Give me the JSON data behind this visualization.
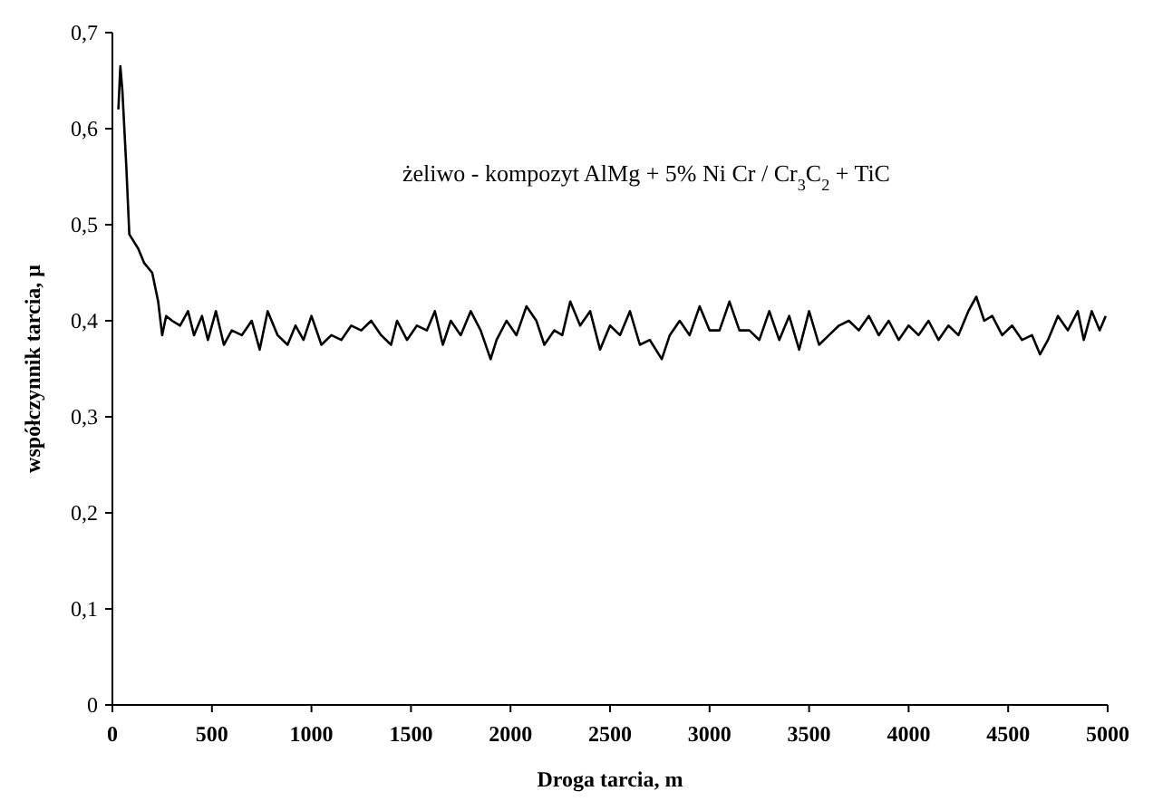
{
  "chart_data": {
    "type": "line",
    "title": "żeliwo - kompozyt AlMg + 5% Ni Cr / Cr$_{3}$C$_{2}$ + TiC",
    "xlabel": "Droga tarcia, m",
    "ylabel": "współczynnik tarcia,  μ",
    "xlim": [
      0,
      5000
    ],
    "xticks": [
      0,
      500,
      1000,
      1500,
      2000,
      2500,
      3000,
      3500,
      4000,
      4500,
      5000
    ],
    "ylim": [
      0,
      0.7
    ],
    "yticks": [
      {
        "value": 0,
        "label": "0"
      },
      {
        "value": 0.1,
        "label": "0,1"
      },
      {
        "value": 0.2,
        "label": "0,2"
      },
      {
        "value": 0.3,
        "label": "0,3"
      },
      {
        "value": 0.4,
        "label": "0,4"
      },
      {
        "value": 0.5,
        "label": "0,5"
      },
      {
        "value": 0.6,
        "label": "0,6"
      },
      {
        "value": 0.7,
        "label": "0,7"
      }
    ],
    "grid": false,
    "marker": "none",
    "line_style": "solid",
    "series": [
      {
        "color": "#000000",
        "x": [
          30,
          40,
          50,
          70,
          85,
          100,
          130,
          160,
          200,
          230,
          250,
          270,
          300,
          340,
          380,
          410,
          450,
          480,
          520,
          560,
          600,
          650,
          700,
          740,
          780,
          830,
          880,
          920,
          960,
          1000,
          1050,
          1100,
          1150,
          1200,
          1250,
          1300,
          1350,
          1400,
          1430,
          1480,
          1530,
          1580,
          1620,
          1660,
          1700,
          1750,
          1800,
          1850,
          1900,
          1930,
          1980,
          2030,
          2080,
          2130,
          2170,
          2220,
          2260,
          2300,
          2350,
          2400,
          2450,
          2500,
          2550,
          2600,
          2650,
          2700,
          2760,
          2800,
          2850,
          2900,
          2950,
          3000,
          3050,
          3100,
          3150,
          3200,
          3250,
          3300,
          3350,
          3400,
          3450,
          3500,
          3550,
          3600,
          3650,
          3700,
          3750,
          3800,
          3850,
          3900,
          3950,
          4000,
          4050,
          4100,
          4150,
          4200,
          4250,
          4300,
          4340,
          4380,
          4420,
          4470,
          4520,
          4570,
          4620,
          4660,
          4700,
          4750,
          4800,
          4850,
          4880,
          4920,
          4960,
          4990
        ],
        "values": [
          0.62,
          0.665,
          0.64,
          0.56,
          0.49,
          0.485,
          0.475,
          0.46,
          0.45,
          0.42,
          0.385,
          0.405,
          0.4,
          0.395,
          0.41,
          0.385,
          0.405,
          0.38,
          0.41,
          0.375,
          0.39,
          0.385,
          0.4,
          0.37,
          0.41,
          0.385,
          0.375,
          0.395,
          0.38,
          0.405,
          0.375,
          0.385,
          0.38,
          0.395,
          0.39,
          0.4,
          0.385,
          0.375,
          0.4,
          0.38,
          0.395,
          0.39,
          0.41,
          0.375,
          0.4,
          0.385,
          0.41,
          0.39,
          0.36,
          0.38,
          0.4,
          0.385,
          0.415,
          0.4,
          0.375,
          0.39,
          0.385,
          0.42,
          0.395,
          0.41,
          0.37,
          0.395,
          0.385,
          0.41,
          0.375,
          0.38,
          0.36,
          0.385,
          0.4,
          0.385,
          0.415,
          0.39,
          0.39,
          0.42,
          0.39,
          0.39,
          0.38,
          0.41,
          0.38,
          0.405,
          0.37,
          0.41,
          0.375,
          0.385,
          0.395,
          0.4,
          0.39,
          0.405,
          0.385,
          0.4,
          0.38,
          0.395,
          0.385,
          0.4,
          0.38,
          0.395,
          0.385,
          0.41,
          0.425,
          0.4,
          0.405,
          0.385,
          0.395,
          0.38,
          0.385,
          0.365,
          0.38,
          0.405,
          0.39,
          0.41,
          0.38,
          0.41,
          0.39,
          0.405
        ]
      }
    ]
  }
}
